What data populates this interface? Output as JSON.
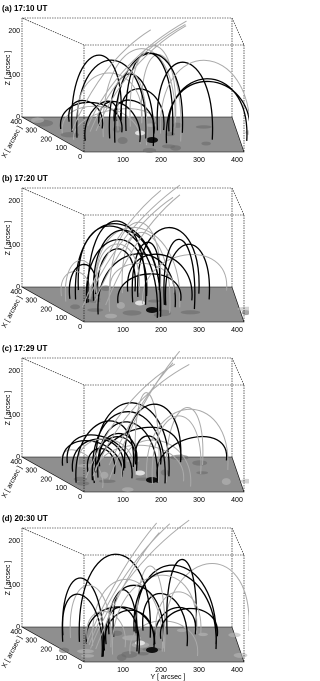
{
  "panels": [
    {
      "label": "(a) 17:10 UT",
      "z_axis_label": "Z [ arcsec ]",
      "x_axis_label": "X [ arcsec ]",
      "z_ticks": [
        0,
        100,
        200
      ],
      "x_ticks": [
        0,
        100,
        200,
        300,
        400
      ],
      "y_ticks": [
        100,
        200,
        300,
        400
      ]
    },
    {
      "label": "(b) 17:20 UT",
      "z_axis_label": "Z [ arcsec ]",
      "x_axis_label": "X [ arcsec ]",
      "z_ticks": [
        0,
        100,
        200
      ],
      "x_ticks": [
        0,
        100,
        200,
        300,
        400
      ],
      "y_ticks": [
        100,
        200,
        300,
        400
      ]
    },
    {
      "label": "(c) 17:29 UT",
      "z_axis_label": "Z [ arcsec ]",
      "x_axis_label": "X [ arcsec ]",
      "z_ticks": [
        0,
        100,
        200
      ],
      "x_ticks": [
        0,
        100,
        200,
        300,
        400
      ],
      "y_ticks": [
        100,
        200,
        300,
        400
      ]
    },
    {
      "label": "(d) 20:30 UT",
      "z_axis_label": "Z [ arcsec ]",
      "x_axis_label": "X [ arcsec ]",
      "y_axis_label": "Y [ arcsec ]",
      "z_ticks": [
        0,
        100,
        200
      ],
      "x_ticks": [
        0,
        100,
        200,
        300,
        400
      ],
      "y_ticks": [
        100,
        200,
        300,
        400
      ]
    }
  ]
}
